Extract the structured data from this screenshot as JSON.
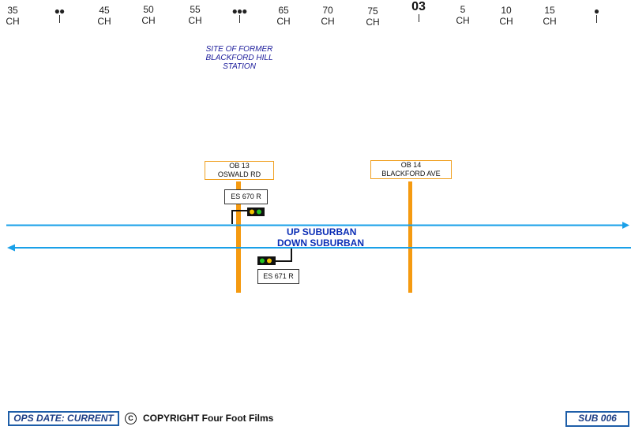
{
  "mileage": {
    "marks": [
      {
        "num": "35",
        "unit": "CH"
      },
      {
        "dots": "●●"
      },
      {
        "num": "45",
        "unit": "CH"
      },
      {
        "num": "50",
        "unit": "CH"
      },
      {
        "num": "55",
        "unit": "CH"
      },
      {
        "dots": "●●●"
      },
      {
        "num": "65",
        "unit": "CH"
      },
      {
        "num": "70",
        "unit": "CH"
      },
      {
        "num": "75",
        "unit": "CH"
      },
      {
        "num": "03",
        "major": true
      },
      {
        "num": "5",
        "unit": "CH"
      },
      {
        "num": "10",
        "unit": "CH"
      },
      {
        "num": "15",
        "unit": "CH"
      },
      {
        "dots": "●"
      }
    ]
  },
  "site_note": [
    "SITE OF FORMER",
    "BLACKFORD HILL",
    "STATION"
  ],
  "bridges": [
    {
      "id": "OB 13",
      "name": "OSWALD RD"
    },
    {
      "id": "OB 14",
      "name": "BLACKFORD AVE"
    }
  ],
  "signals": [
    {
      "label": "ES 670 R",
      "aspects": [
        "#f2c200",
        "#22c422"
      ]
    },
    {
      "label": "ES 671 R",
      "aspects": [
        "#22c422",
        "#f2c200"
      ]
    }
  ],
  "lines": {
    "up": "UP SUBURBAN",
    "down": "DOWN SUBURBAN",
    "color": "#1aa0e8"
  },
  "footer": {
    "ops_date": "OPS DATE: CURRENT",
    "copyright_symbol": "C",
    "copyright": "COPYRIGHT Four Foot Films",
    "diagram_id": "SUB 006"
  }
}
